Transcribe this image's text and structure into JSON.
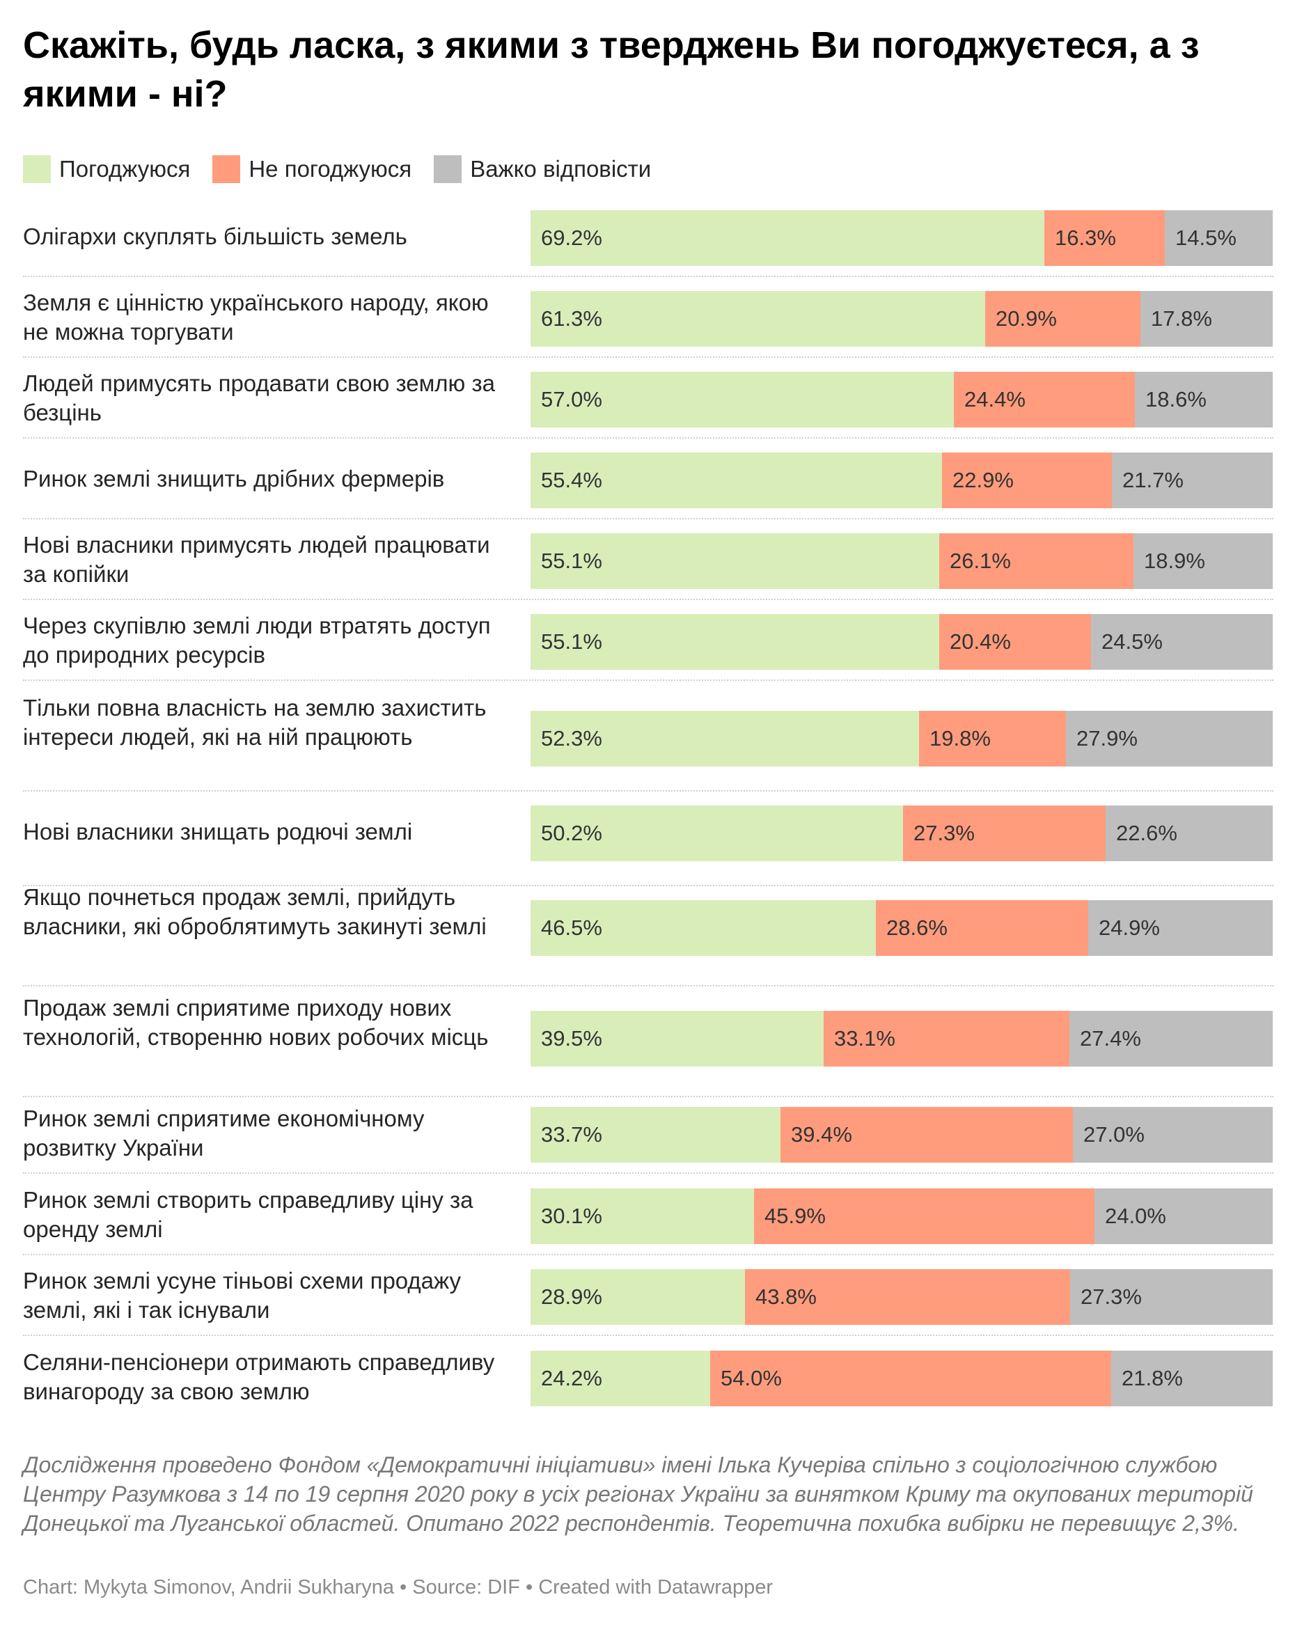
{
  "title": "Скажіть, будь ласка, з якими з тверджень Ви погоджуєтеся, а з якими - ні?",
  "legend": [
    {
      "label": "Погоджуюся",
      "color": "#d9edb9"
    },
    {
      "label": "Не погоджуюся",
      "color": "#fe9c7d"
    },
    {
      "label": "Важко відповісти",
      "color": "#bebebe"
    }
  ],
  "chart_data": {
    "type": "bar",
    "orientation": "horizontal",
    "stacked": true,
    "categories": [
      "Олігархи скуплять більшість земель",
      "Земля є цінністю українського народу, якою не можна торгувати",
      "Людей примусять продавати свою землю за безцінь",
      "Ринок землі знищить дрібних фермерів",
      "Нові власники примусять людей працювати за копійки",
      "Через скупівлю землі люди втратять доступ до природних ресурсів",
      "Тільки повна власність на землю захистить інтереси людей, які на ній працюють",
      "Нові власники знищать родючі землі",
      "Якщо почнеться продаж землі, прийдуть власники, які оброблятимуть закинуті землі",
      "Продаж землі сприятиме приходу нових технологій, створенню нових робочих місць",
      "Ринок землі сприятиме економічному розвитку України",
      "Ринок землі створить справедливу ціну за оренду землі",
      "Ринок землі усуне тіньові схеми продажу землі, які і так існували",
      "Селяни-пенсіонери отримають справедливу винагороду за свою землю"
    ],
    "series": [
      {
        "name": "Погоджуюся",
        "color": "#d9edb9",
        "values": [
          69.2,
          61.3,
          57.0,
          55.4,
          55.1,
          55.1,
          52.3,
          50.2,
          46.5,
          39.5,
          33.7,
          30.1,
          28.9,
          24.2
        ],
        "labels": [
          "69.2%",
          "61.3%",
          "57.0%",
          "55.4%",
          "55.1%",
          "55.1%",
          "52.3%",
          "50.2%",
          "46.5%",
          "39.5%",
          "33.7%",
          "30.1%",
          "28.9%",
          "24.2%"
        ]
      },
      {
        "name": "Не погоджуюся",
        "color": "#fe9c7d",
        "values": [
          16.3,
          20.9,
          24.4,
          22.9,
          26.1,
          20.4,
          19.8,
          27.3,
          28.6,
          33.1,
          39.4,
          45.9,
          43.8,
          54.0
        ],
        "labels": [
          "16.3%",
          "20.9%",
          "24.4%",
          "22.9%",
          "26.1%",
          "20.4%",
          "19.8%",
          "27.3%",
          "28.6%",
          "33.1%",
          "39.4%",
          "45.9%",
          "43.8%",
          "54.0%"
        ]
      },
      {
        "name": "Важко відповісти",
        "color": "#bebebe",
        "values": [
          14.5,
          17.8,
          18.6,
          21.7,
          18.9,
          24.5,
          27.9,
          22.6,
          24.9,
          27.4,
          27.0,
          24.0,
          27.3,
          21.8
        ],
        "labels": [
          "14.5%",
          "17.8%",
          "18.6%",
          "21.7%",
          "18.9%",
          "24.5%",
          "27.9%",
          "22.6%",
          "24.9%",
          "27.4%",
          "27.0%",
          "24.0%",
          "27.3%",
          "21.8%"
        ]
      }
    ],
    "xlim": [
      0,
      100
    ],
    "unit": "%",
    "grid": false,
    "legend_position": "top-left"
  },
  "note": "Дослідження проведено Фондом «Демократичні ініціативи» імені Ілька Кучеріва спільно з соціологічною службою Центру Разумкова з 14 по 19 серпня 2020 року в усіх регіонах України за винятком Криму та окупованих територій Донецької та Луганської областей. Опитано 2022 респондентів. Теоретична похибка вибірки не перевищує 2,3%.",
  "credits": "Chart: Mykyta Simonov, Andrii Sukharyna • Source: DIF • Created with Datawrapper"
}
